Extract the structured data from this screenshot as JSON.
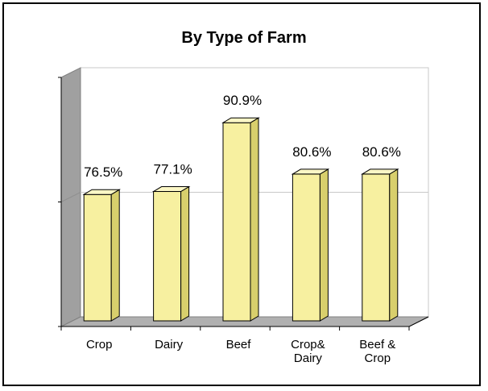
{
  "chart_data": {
    "type": "bar",
    "title": "By Type of Farm",
    "categories": [
      [
        "Crop"
      ],
      [
        "Dairy"
      ],
      [
        "Beef"
      ],
      [
        "Crop&",
        "Dairy"
      ],
      [
        "Beef &",
        "Crop"
      ]
    ],
    "values": [
      76.5,
      77.1,
      90.9,
      80.6,
      80.6
    ],
    "data_labels": [
      "76.5%",
      "77.1%",
      "90.9%",
      "80.6%",
      "80.6%"
    ],
    "ylim": [
      50,
      100
    ],
    "grid": true,
    "bar_color": "#f7f0a0",
    "bar_side_color": "#d8cf6c",
    "bar_top_color": "#fbf7c6",
    "wall_color": "#a0a0a0",
    "floor_color": "#b0b0b0"
  }
}
